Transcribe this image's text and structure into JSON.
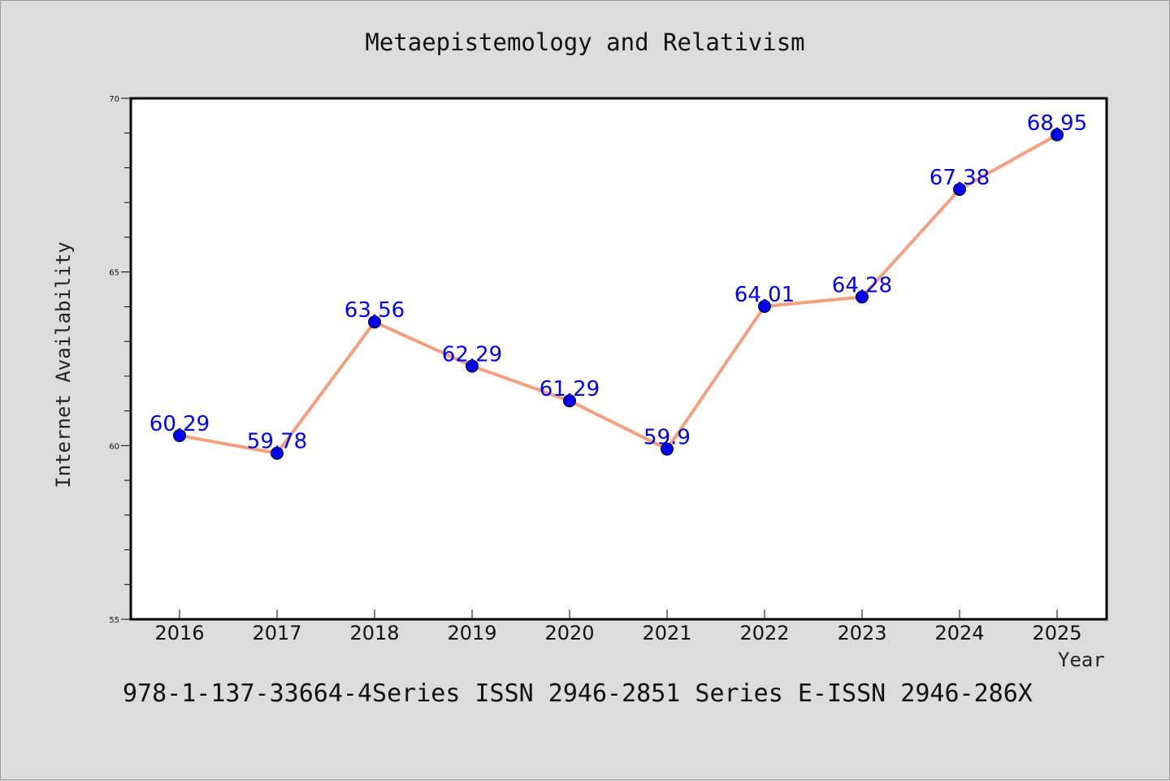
{
  "title": "Metaepistemology and Relativism",
  "footer": "978-1-137-33664-4Series ISSN 2946-2851 Series E-ISSN 2946-286X",
  "colors": {
    "background": "#dcdcdc",
    "plot_background": "#ffffff",
    "line": "#f4a07f",
    "marker": "#0000ee",
    "data_label": "#0000ee"
  },
  "chart_data": {
    "type": "line",
    "title": "Metaepistemology and Relativism",
    "xlabel": "Year",
    "ylabel": "Internet Availability",
    "categories": [
      "2016",
      "2017",
      "2018",
      "2019",
      "2020",
      "2021",
      "2022",
      "2023",
      "2024",
      "2025"
    ],
    "series": [
      {
        "values": [
          60.29,
          59.78,
          63.56,
          62.29,
          61.29,
          59.9,
          64.01,
          64.28,
          67.38,
          68.95
        ],
        "labels": [
          "60.29",
          "59.78",
          "63.56",
          "62.29",
          "61.29",
          "59.9",
          "64.01",
          "64.28",
          "67.38",
          "68.95"
        ]
      }
    ],
    "ylim": [
      55,
      70
    ],
    "y_ticks": [
      55,
      60,
      65,
      70
    ],
    "y_minor_step": 1,
    "grid": false,
    "legend": "none"
  }
}
